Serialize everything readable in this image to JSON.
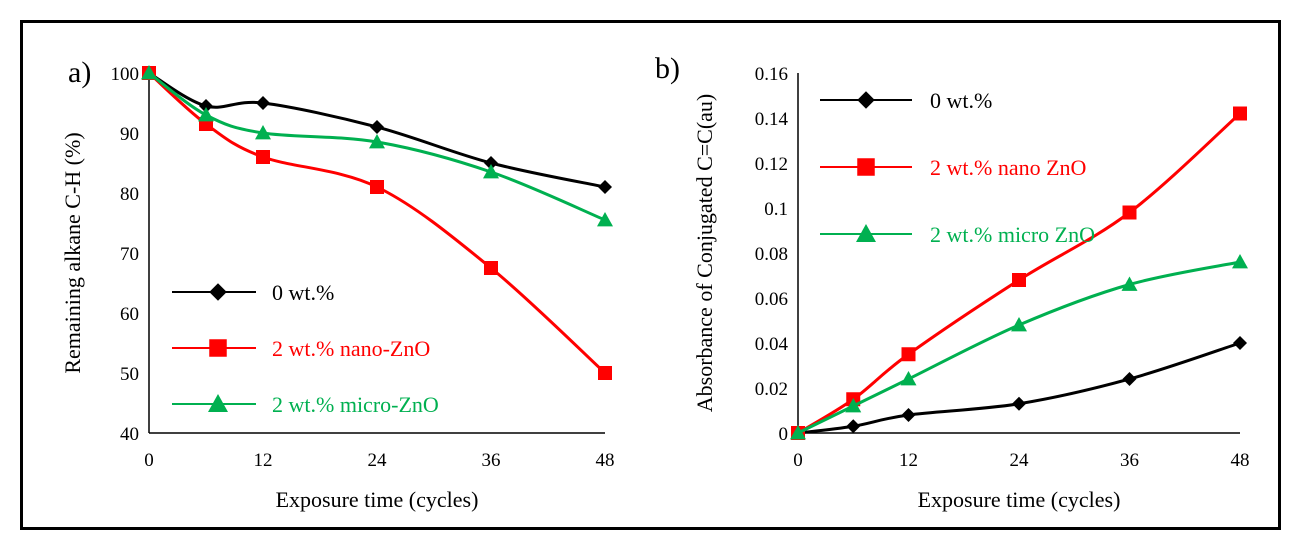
{
  "chart_data": [
    {
      "panel_label": "a)",
      "type": "line",
      "xlabel": "Exposure  time (cycles)",
      "ylabel": "Remaining alkane C-H (%)",
      "xlim": [
        0,
        48
      ],
      "ylim": [
        40,
        100
      ],
      "x_ticks": [
        "0",
        "12",
        "24",
        "36",
        "48"
      ],
      "y_ticks": [
        "40",
        "50",
        "60",
        "70",
        "80",
        "90",
        "100"
      ],
      "legend_position": "bottom-left",
      "series": [
        {
          "name": "0 wt.%",
          "color": "#000000",
          "marker": "diamond",
          "x": [
            0,
            6,
            12,
            24,
            36,
            48
          ],
          "y": [
            100,
            94.5,
            95,
            91,
            85,
            81
          ]
        },
        {
          "name": "2 wt.% nano-ZnO",
          "color": "#ff0000",
          "marker": "square",
          "x": [
            0,
            6,
            12,
            24,
            36,
            48
          ],
          "y": [
            100,
            91.5,
            86,
            81,
            67.5,
            50
          ]
        },
        {
          "name": "2 wt.% micro-ZnO",
          "color": "#00b050",
          "marker": "triangle",
          "x": [
            0,
            6,
            12,
            24,
            36,
            48
          ],
          "y": [
            100,
            93,
            90,
            88.5,
            83.5,
            75.5
          ]
        }
      ]
    },
    {
      "panel_label": "b)",
      "type": "line",
      "xlabel": "Exposure  time (cycles)",
      "ylabel": "Absorbance of Conjugated C=C(au)",
      "xlim": [
        0,
        48
      ],
      "ylim": [
        0,
        0.16
      ],
      "x_ticks": [
        "0",
        "12",
        "24",
        "36",
        "48"
      ],
      "y_ticks": [
        "0",
        "0.02",
        "0.04",
        "0.06",
        "0.08",
        "0.1",
        "0.12",
        "0.14",
        "0.16"
      ],
      "legend_position": "top-left",
      "series": [
        {
          "name": "0 wt.%",
          "color": "#000000",
          "marker": "diamond",
          "x": [
            0,
            6,
            12,
            24,
            36,
            48
          ],
          "y": [
            0,
            0.003,
            0.008,
            0.013,
            0.024,
            0.04
          ]
        },
        {
          "name": "2 wt.% nano  ZnO",
          "color": "#ff0000",
          "marker": "square",
          "x": [
            0,
            6,
            12,
            24,
            36,
            48
          ],
          "y": [
            0,
            0.015,
            0.035,
            0.068,
            0.098,
            0.142
          ]
        },
        {
          "name": "2 wt.% micro  ZnO",
          "color": "#00b050",
          "marker": "triangle",
          "x": [
            0,
            6,
            12,
            24,
            36,
            48
          ],
          "y": [
            0,
            0.012,
            0.024,
            0.048,
            0.066,
            0.076
          ]
        }
      ]
    }
  ]
}
